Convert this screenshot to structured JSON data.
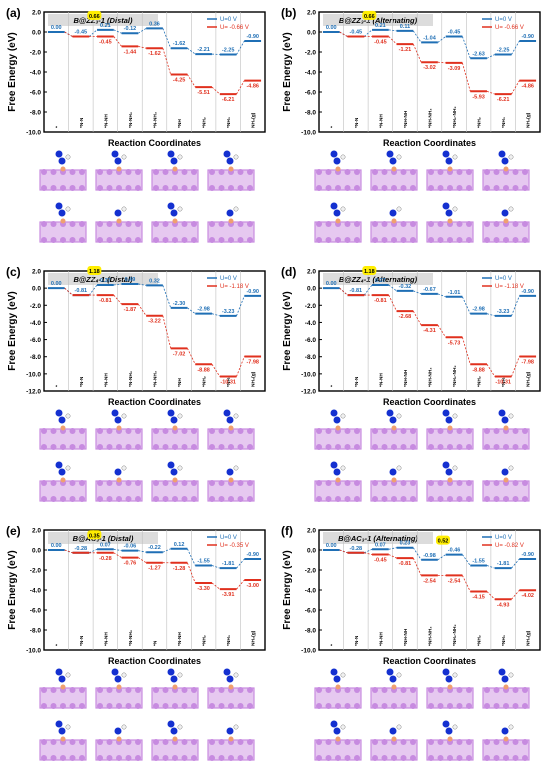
{
  "colors": {
    "u0": "#1f6fb5",
    "u1": "#e0301e",
    "highlight": "#ffee00",
    "grid": "#bfbfbf",
    "atom_b": "#f0a070",
    "atom_n": "#1430d0",
    "atom_h": "#f0f0f0",
    "atom_host": "#c78be0"
  },
  "chart_data": [
    {
      "type": "line",
      "panel": "(a)",
      "title": "B@ZZ₃-1 (Distal)",
      "xlabel": "Reaction Coordinates",
      "ylabel": "Free Energy (eV)",
      "ylim": [
        -10,
        2
      ],
      "yticks": [
        "2.0",
        "0.0",
        "-2.0",
        "-4.0",
        "-6.0",
        "-8.0",
        "-10.0"
      ],
      "categories": [
        "*",
        "*N-N",
        "*N-NH",
        "*N-NH₂",
        "*N-NH₃",
        "*NH",
        "*NH₂",
        "*NH₃",
        "NH₃(g)"
      ],
      "legend": [
        {
          "name": "U=0 V"
        },
        {
          "name": "U= -0.66 V"
        }
      ],
      "series": [
        {
          "name": "U=0 V",
          "values": [
            0.0,
            -0.45,
            0.21,
            -0.12,
            0.36,
            -1.62,
            -2.21,
            -2.25,
            -0.9
          ],
          "labels": [
            "0.00",
            "-0.45",
            "0.21",
            "-0.12",
            "0.36",
            "-1.62",
            "-2.21",
            "-2.25",
            "-0.90"
          ]
        },
        {
          "name": "U= -0.66 V",
          "values": [
            null,
            -0.45,
            -0.45,
            -1.44,
            -1.62,
            -4.25,
            -5.51,
            -6.21,
            -4.86
          ],
          "labels": [
            "",
            "",
            "-0.45",
            "-1.44",
            "-1.62",
            "-4.25",
            "-5.51",
            "-6.21",
            "-4.86"
          ]
        }
      ],
      "highlight": {
        "text": "0.66",
        "at": 2
      }
    },
    {
      "type": "line",
      "panel": "(b)",
      "title": "B@ZZ₃-1 (Alternating)",
      "xlabel": "Reaction Coordinates",
      "ylabel": "Free Energy (eV)",
      "ylim": [
        -10,
        2
      ],
      "yticks": [
        "2.0",
        "0.0",
        "-2.0",
        "-4.0",
        "-6.0",
        "-8.0",
        "-10.0"
      ],
      "categories": [
        "*",
        "*N-N",
        "*N-NH",
        "*NH-NH",
        "*NH-NH₂",
        "*NH₂-NH₂",
        "*NH₂",
        "*NH₃",
        "NH₃(g)"
      ],
      "legend": [
        {
          "name": "U=0 V"
        },
        {
          "name": "U= -0.66 V"
        }
      ],
      "series": [
        {
          "name": "U=0 V",
          "values": [
            0.0,
            -0.45,
            0.21,
            0.11,
            -1.04,
            -0.45,
            -2.63,
            -2.25,
            -0.9
          ],
          "labels": [
            "0.00",
            "-0.45",
            "0.21",
            "0.11",
            "-1.04",
            "-0.45",
            "-2.63",
            "-2.25",
            "-0.90"
          ]
        },
        {
          "name": "U= -0.66 V",
          "values": [
            null,
            -0.45,
            -0.45,
            -1.21,
            -3.02,
            -3.09,
            -5.93,
            -6.21,
            -4.86
          ],
          "labels": [
            "",
            "",
            "-0.45",
            "-1.21",
            "-3.02",
            "-3.09",
            "-5.93",
            "-6.21",
            "-4.86"
          ]
        }
      ],
      "highlight": {
        "text": "0.66",
        "at": 2
      }
    },
    {
      "type": "line",
      "panel": "(c)",
      "title": "B@ZZ₄-1 (Distal)",
      "xlabel": "Reaction Coordinates",
      "ylabel": "Free Energy (eV)",
      "ylim": [
        -12,
        2
      ],
      "yticks": [
        "2.0",
        "0.0",
        "-2.0",
        "-4.0",
        "-6.0",
        "-8.0",
        "-10.0",
        "-12.0"
      ],
      "categories": [
        "*",
        "*N-N",
        "*N-NH",
        "*N-NH₂",
        "*N-NH₃",
        "*NH",
        "*NH₂",
        "*NH₃",
        "NH₃(g)"
      ],
      "legend": [
        {
          "name": "U=0 V"
        },
        {
          "name": "U= -1.18 V"
        }
      ],
      "series": [
        {
          "name": "U=0 V",
          "values": [
            0.0,
            -0.81,
            0.37,
            0.49,
            0.32,
            -2.3,
            -2.98,
            -3.23,
            -0.9
          ],
          "labels": [
            "0.00",
            "-0.81",
            "0.37",
            "0.49",
            "0.32",
            "-2.30",
            "-2.98",
            "-3.23",
            "-0.90"
          ]
        },
        {
          "name": "U= -1.18 V",
          "values": [
            null,
            -0.81,
            -0.81,
            -1.87,
            -3.22,
            -7.02,
            -8.88,
            -10.31,
            -7.98
          ],
          "labels": [
            "",
            "",
            "-0.81",
            "-1.87",
            "-3.22",
            "-7.02",
            "-8.88",
            "-10.31",
            "-7.98"
          ]
        }
      ],
      "highlight": {
        "text": "1.18",
        "at": 2
      }
    },
    {
      "type": "line",
      "panel": "(d)",
      "title": "B@ZZ₄-1 (Alternating)",
      "xlabel": "Reaction Coordinates",
      "ylabel": "Free Energy (eV)",
      "ylim": [
        -12,
        2
      ],
      "yticks": [
        "2.0",
        "0.0",
        "-2.0",
        "-4.0",
        "-6.0",
        "-8.0",
        "-10.0",
        "-12.0"
      ],
      "categories": [
        "*",
        "*N-N",
        "*N-NH",
        "*NH-NH",
        "*NH-NH₂",
        "*NH₂-NH₂",
        "*NH₂",
        "*NH₃",
        "NH₃(g)"
      ],
      "legend": [
        {
          "name": "U=0 V"
        },
        {
          "name": "U= -1.18 V"
        }
      ],
      "series": [
        {
          "name": "U=0 V",
          "values": [
            0.0,
            -0.81,
            0.37,
            -0.32,
            -0.67,
            -1.01,
            -2.98,
            -3.23,
            -0.9
          ],
          "labels": [
            "0.00",
            "-0.81",
            "0.37",
            "-0.32",
            "-0.67",
            "-1.01",
            "-2.98",
            "-3.23",
            "-0.90"
          ]
        },
        {
          "name": "U= -1.18 V",
          "values": [
            null,
            -0.81,
            -0.81,
            -2.68,
            -4.31,
            -5.73,
            -8.88,
            -10.31,
            -7.98
          ],
          "labels": [
            "",
            "",
            "-0.81",
            "-2.68",
            "-4.31",
            "-5.73",
            "-8.88",
            "-10.31",
            "-7.98"
          ]
        }
      ],
      "highlight": {
        "text": "1.18",
        "at": 2
      }
    },
    {
      "type": "line",
      "panel": "(e)",
      "title": "B@AC₃-1 (Distal)",
      "xlabel": "Reaction Coordinates",
      "ylabel": "Free Energy (eV)",
      "ylim": [
        -10,
        2
      ],
      "yticks": [
        "2.0",
        "0.0",
        "-2.0",
        "-4.0",
        "-6.0",
        "-8.0",
        "-10.0"
      ],
      "categories": [
        "*",
        "*N-N",
        "*N-NH",
        "*N-NH₂",
        "*N",
        "*N-NH",
        "*NH₂",
        "*NH₃",
        "NH₃(g)"
      ],
      "legend": [
        {
          "name": "U=0 V"
        },
        {
          "name": "U= -0.35 V"
        }
      ],
      "series": [
        {
          "name": "U=0 V",
          "values": [
            0.0,
            -0.28,
            0.07,
            -0.06,
            -0.22,
            0.12,
            -1.55,
            -1.81,
            -0.9
          ],
          "labels": [
            "0.00",
            "-0.28",
            "0.07",
            "-0.06",
            "-0.22",
            "0.12",
            "-1.55",
            "-1.81",
            "-0.90"
          ]
        },
        {
          "name": "U= -0.35 V",
          "values": [
            null,
            -0.28,
            -0.28,
            -0.76,
            -1.27,
            -1.28,
            -3.3,
            -3.91,
            -3.0
          ],
          "labels": [
            "",
            "",
            "-0.28",
            "-0.76",
            "-1.27",
            "-1.28",
            "-3.30",
            "-3.91",
            "-3.00"
          ]
        }
      ],
      "highlight": {
        "text": "0.35",
        "at": 2
      }
    },
    {
      "type": "line",
      "panel": "(f)",
      "title": "B@AC₃-1 (Alternating)",
      "xlabel": "Reaction Coordinates",
      "ylabel": "Free Energy (eV)",
      "ylim": [
        -10,
        2
      ],
      "yticks": [
        "2.0",
        "0.0",
        "-2.0",
        "-4.0",
        "-6.0",
        "-8.0",
        "-10.0"
      ],
      "categories": [
        "*",
        "*N-N",
        "*N-NH",
        "*NH-NH",
        "*NH-NH₂",
        "*NH₂-NH₂",
        "*NH₂",
        "*NH₃",
        "NH₃(g)"
      ],
      "legend": [
        {
          "name": "U=0 V"
        },
        {
          "name": "U= -0.82 V"
        }
      ],
      "series": [
        {
          "name": "U=0 V",
          "values": [
            0.0,
            -0.28,
            0.07,
            0.23,
            -0.98,
            -0.46,
            -1.55,
            -1.81,
            -0.9
          ],
          "labels": [
            "0.00",
            "-0.28",
            "0.07",
            "0.23",
            "-0.98",
            "-0.46",
            "-1.55",
            "-1.81",
            "-0.90"
          ]
        },
        {
          "name": "U= -0.82 V",
          "values": [
            null,
            -0.28,
            -0.45,
            -0.81,
            -2.54,
            -2.54,
            -4.15,
            -4.93,
            -4.02
          ],
          "labels": [
            "",
            "",
            "-0.45",
            "-0.81",
            "-2.54",
            "-2.54",
            "-4.15",
            "-4.93",
            "-4.02"
          ]
        }
      ],
      "highlight": {
        "text": "0.52",
        "at": 5
      }
    }
  ]
}
